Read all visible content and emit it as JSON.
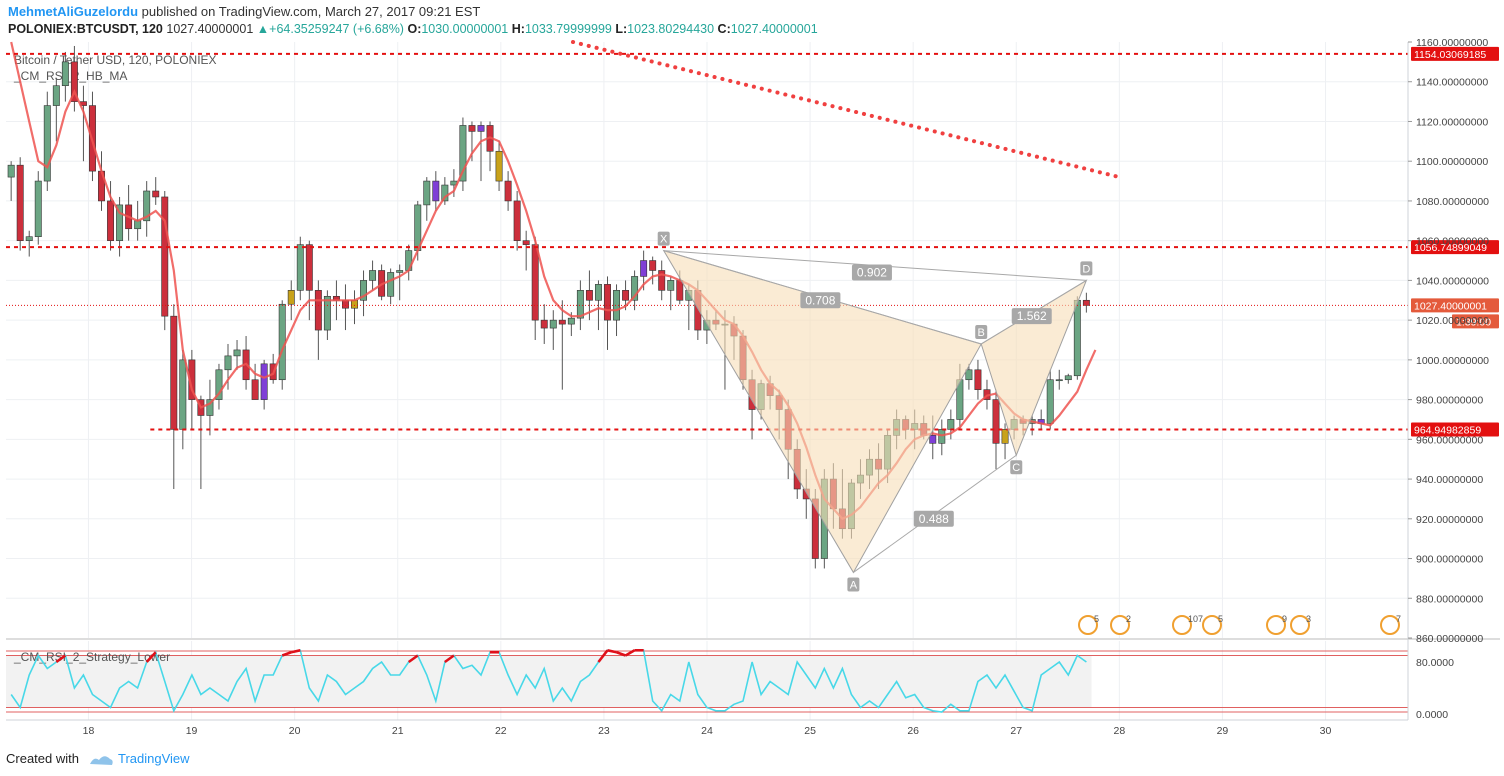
{
  "header": {
    "author": "MehmetAliGuzelordu",
    "published": "published on TradingView.com, March 27, 2017 09:21 EST",
    "symbol": "POLONIEX:BTCUSDT, 120",
    "last": "1027.40000001",
    "change": "+64.35259247 (+6.68%)",
    "o_label": "O:",
    "o": "1030.00000001",
    "h_label": "H:",
    "h": "1033.79999999",
    "l_label": "L:",
    "l": "1023.80294430",
    "c_label": "C:",
    "c": "1027.40000001"
  },
  "chart_data": [
    {
      "type": "candlestick",
      "title": "Bitcoin / Tether USD, 120, POLONIEX",
      "indicator": "_CM_RSI_2_HB_MA",
      "ylim": [
        860,
        1160
      ],
      "y_ticks": [
        860,
        880,
        900,
        920,
        940,
        960,
        980,
        1000,
        1020,
        1040,
        1060,
        1080,
        1100,
        1120,
        1140,
        1160
      ],
      "y_tick_labels": [
        "860.00000000",
        "880.00000000",
        "900.00000000",
        "920.00000000",
        "940.00000000",
        "960.00000000",
        "980.00000000",
        "1000.00000000",
        "1020.00000000",
        "1040.00000000",
        "1060.00000000",
        "1080.00000000",
        "1100.00000000",
        "1120.00000000",
        "1140.00000000",
        "1160.00000000"
      ],
      "xlim": [
        17.2,
        30.8
      ],
      "x_ticks": [
        18,
        19,
        20,
        21,
        22,
        23,
        24,
        25,
        26,
        27,
        28,
        29,
        30
      ],
      "x_tick_labels": [
        "18",
        "19",
        "20",
        "21",
        "22",
        "23",
        "24",
        "25",
        "26",
        "27",
        "28",
        "29",
        "30"
      ],
      "ohlc": [
        [
          1092,
          1100,
          1080,
          1098
        ],
        [
          1098,
          1102,
          1055,
          1060
        ],
        [
          1060,
          1065,
          1052,
          1062
        ],
        [
          1062,
          1095,
          1058,
          1090
        ],
        [
          1090,
          1135,
          1085,
          1128
        ],
        [
          1128,
          1142,
          1110,
          1138
        ],
        [
          1138,
          1155,
          1130,
          1150
        ],
        [
          1150,
          1158,
          1125,
          1130
        ],
        [
          1130,
          1138,
          1100,
          1128
        ],
        [
          1128,
          1135,
          1090,
          1095
        ],
        [
          1095,
          1105,
          1075,
          1080
        ],
        [
          1080,
          1090,
          1055,
          1060
        ],
        [
          1060,
          1082,
          1052,
          1078
        ],
        [
          1078,
          1088,
          1060,
          1066
        ],
        [
          1066,
          1080,
          1060,
          1070
        ],
        [
          1070,
          1090,
          1062,
          1085
        ],
        [
          1085,
          1092,
          1078,
          1082
        ],
        [
          1082,
          1085,
          1015,
          1022
        ],
        [
          1022,
          1028,
          935,
          965
        ],
        [
          965,
          1005,
          955,
          1000
        ],
        [
          1000,
          1005,
          965,
          980
        ],
        [
          980,
          982,
          935,
          972
        ],
        [
          972,
          990,
          962,
          980
        ],
        [
          980,
          998,
          975,
          995
        ],
        [
          995,
          1008,
          985,
          1002
        ],
        [
          1002,
          1010,
          995,
          1005
        ],
        [
          1005,
          1012,
          985,
          990
        ],
        [
          990,
          998,
          980,
          980
        ],
        [
          980,
          1000,
          975,
          998
        ],
        [
          998,
          1003,
          988,
          990
        ],
        [
          990,
          1030,
          985,
          1028
        ],
        [
          1028,
          1040,
          1020,
          1035
        ],
        [
          1035,
          1062,
          1030,
          1058
        ],
        [
          1058,
          1060,
          1020,
          1035
        ],
        [
          1035,
          1040,
          1000,
          1015
        ],
        [
          1015,
          1035,
          1010,
          1032
        ],
        [
          1032,
          1040,
          1020,
          1030
        ],
        [
          1030,
          1038,
          1015,
          1026
        ],
        [
          1026,
          1035,
          1018,
          1030
        ],
        [
          1030,
          1045,
          1022,
          1040
        ],
        [
          1040,
          1050,
          1035,
          1045
        ],
        [
          1045,
          1048,
          1030,
          1032
        ],
        [
          1032,
          1046,
          1028,
          1044
        ],
        [
          1044,
          1048,
          1030,
          1045
        ],
        [
          1045,
          1058,
          1040,
          1055
        ],
        [
          1055,
          1080,
          1050,
          1078
        ],
        [
          1078,
          1092,
          1070,
          1090
        ],
        [
          1090,
          1095,
          1075,
          1080
        ],
        [
          1080,
          1092,
          1078,
          1088
        ],
        [
          1088,
          1096,
          1082,
          1090
        ],
        [
          1090,
          1122,
          1085,
          1118
        ],
        [
          1118,
          1120,
          1100,
          1115
        ],
        [
          1115,
          1120,
          1090,
          1118
        ],
        [
          1118,
          1120,
          1095,
          1105
        ],
        [
          1105,
          1110,
          1085,
          1090
        ],
        [
          1090,
          1095,
          1075,
          1080
        ],
        [
          1080,
          1085,
          1055,
          1060
        ],
        [
          1060,
          1065,
          1045,
          1058
        ],
        [
          1058,
          1062,
          1010,
          1020
        ],
        [
          1020,
          1028,
          1008,
          1016
        ],
        [
          1016,
          1025,
          1005,
          1020
        ],
        [
          1020,
          1030,
          985,
          1018
        ],
        [
          1018,
          1024,
          1012,
          1021
        ],
        [
          1021,
          1040,
          1015,
          1035
        ],
        [
          1035,
          1045,
          1020,
          1030
        ],
        [
          1030,
          1040,
          1015,
          1038
        ],
        [
          1038,
          1042,
          1005,
          1020
        ],
        [
          1020,
          1038,
          1012,
          1035
        ],
        [
          1035,
          1040,
          1025,
          1030
        ],
        [
          1030,
          1045,
          1025,
          1042
        ],
        [
          1042,
          1055,
          1035,
          1050
        ],
        [
          1050,
          1052,
          1038,
          1045
        ],
        [
          1045,
          1050,
          1030,
          1035
        ],
        [
          1035,
          1042,
          1025,
          1040
        ],
        [
          1040,
          1045,
          1028,
          1030
        ],
        [
          1030,
          1038,
          1015,
          1035
        ],
        [
          1035,
          1040,
          1010,
          1015
        ],
        [
          1015,
          1025,
          1008,
          1020
        ],
        [
          1020,
          1025,
          1015,
          1018
        ],
        [
          1018,
          1025,
          985,
          1018
        ],
        [
          1018,
          1022,
          1000,
          1012
        ],
        [
          1012,
          1015,
          985,
          990
        ],
        [
          990,
          995,
          960,
          975
        ],
        [
          975,
          990,
          970,
          988
        ],
        [
          988,
          992,
          975,
          982
        ],
        [
          982,
          985,
          960,
          975
        ],
        [
          975,
          980,
          940,
          955
        ],
        [
          955,
          960,
          930,
          935
        ],
        [
          935,
          945,
          920,
          930
        ],
        [
          930,
          935,
          895,
          900
        ],
        [
          900,
          945,
          895,
          940
        ],
        [
          940,
          948,
          915,
          925
        ],
        [
          925,
          945,
          910,
          915
        ],
        [
          915,
          940,
          910,
          938
        ],
        [
          938,
          950,
          930,
          942
        ],
        [
          942,
          955,
          935,
          950
        ],
        [
          950,
          958,
          935,
          945
        ],
        [
          945,
          965,
          938,
          962
        ],
        [
          962,
          975,
          955,
          970
        ],
        [
          970,
          972,
          960,
          965
        ],
        [
          965,
          975,
          955,
          968
        ],
        [
          968,
          972,
          960,
          962
        ],
        [
          962,
          972,
          950,
          958
        ],
        [
          958,
          970,
          952,
          965
        ],
        [
          965,
          975,
          960,
          970
        ],
        [
          970,
          998,
          965,
          990
        ],
        [
          990,
          998,
          985,
          995
        ],
        [
          995,
          1000,
          980,
          985
        ],
        [
          985,
          990,
          975,
          980
        ],
        [
          980,
          985,
          945,
          958
        ],
        [
          958,
          968,
          950,
          965
        ],
        [
          965,
          972,
          960,
          970
        ],
        [
          970,
          972,
          962,
          968
        ],
        [
          968,
          972,
          962,
          970
        ],
        [
          970,
          975,
          965,
          968
        ],
        [
          968,
          995,
          965,
          990
        ],
        [
          990,
          995,
          985,
          990
        ],
        [
          990,
          993,
          988,
          992
        ],
        [
          992,
          1032,
          990,
          1030
        ],
        [
          1030,
          1033.8,
          1023.8,
          1027.4
        ]
      ],
      "moving_average": [
        1160,
        1140,
        1120,
        1100,
        1097,
        1108,
        1125,
        1135,
        1125,
        1110,
        1095,
        1082,
        1074,
        1072,
        1070,
        1072,
        1075,
        1070,
        1045,
        1005,
        985,
        976,
        978,
        983,
        990,
        996,
        998,
        993,
        991,
        993,
        1005,
        1015,
        1025,
        1030,
        1030,
        1030,
        1030,
        1030,
        1030,
        1032,
        1035,
        1038,
        1040,
        1042,
        1045,
        1055,
        1065,
        1075,
        1082,
        1085,
        1095,
        1104,
        1110,
        1112,
        1110,
        1100,
        1088,
        1075,
        1060,
        1042,
        1030,
        1025,
        1022,
        1022,
        1024,
        1026,
        1025,
        1025,
        1027,
        1032,
        1038,
        1042,
        1043,
        1042,
        1040,
        1038,
        1035,
        1030,
        1025,
        1020,
        1018,
        1012,
        1004,
        995,
        988,
        984,
        977,
        968,
        956,
        942,
        930,
        925,
        920,
        922,
        926,
        932,
        938,
        942,
        948,
        955,
        960,
        962,
        963,
        962,
        963,
        966,
        972,
        978,
        982,
        983,
        978,
        973,
        970,
        969,
        968,
        967,
        972,
        978,
        984,
        995,
        1005
      ],
      "horizontal_levels": [
        {
          "value": 1154.03069185,
          "label": "1154.03069185"
        },
        {
          "value": 1056.74899049,
          "label": "1056.74899049"
        },
        {
          "value": 964.94982859,
          "label": "964.94982859"
        }
      ],
      "last_price_label": "1027.40000001",
      "countdown_label": "1:39:00",
      "trendline": {
        "from": [
          22.7,
          1160
        ],
        "to": [
          28.0,
          1092
        ]
      },
      "harmonic_pattern": {
        "points": [
          {
            "name": "X",
            "x": 23.58,
            "y": 1055
          },
          {
            "name": "A",
            "x": 25.42,
            "y": 893
          },
          {
            "name": "B",
            "x": 26.66,
            "y": 1008
          },
          {
            "name": "C",
            "x": 27.0,
            "y": 952
          },
          {
            "name": "D",
            "x": 27.68,
            "y": 1040
          }
        ],
        "ratios": [
          {
            "label": "0.902",
            "x": 25.6,
            "y": 1044
          },
          {
            "label": "0.708",
            "x": 25.1,
            "y": 1030
          },
          {
            "label": "1.562",
            "x": 27.15,
            "y": 1022
          },
          {
            "label": "0.488",
            "x": 26.2,
            "y": 920
          }
        ]
      },
      "event_flags": [
        "5",
        "2",
        "107",
        "5",
        "9",
        "3",
        "7"
      ]
    },
    {
      "type": "line",
      "title": "_CM_RSI_2_Strategy_Lower",
      "ylim": [
        0,
        100
      ],
      "y_ticks": [
        0,
        80
      ],
      "y_tick_labels": [
        "0.0000",
        "80.0000"
      ],
      "overbought": 90,
      "oversold": 10,
      "values": [
        30,
        10,
        60,
        90,
        70,
        80,
        90,
        40,
        60,
        30,
        20,
        10,
        40,
        50,
        40,
        80,
        95,
        50,
        5,
        30,
        60,
        30,
        40,
        30,
        20,
        50,
        70,
        20,
        60,
        60,
        90,
        95,
        98,
        40,
        20,
        60,
        50,
        30,
        40,
        50,
        70,
        80,
        60,
        60,
        80,
        90,
        60,
        20,
        80,
        90,
        70,
        75,
        60,
        95,
        95,
        60,
        30,
        60,
        40,
        70,
        20,
        40,
        20,
        50,
        60,
        80,
        98,
        95,
        90,
        98,
        98,
        20,
        5,
        30,
        20,
        80,
        30,
        10,
        5,
        5,
        15,
        20,
        80,
        30,
        50,
        40,
        30,
        80,
        60,
        40,
        70,
        40,
        70,
        30,
        10,
        20,
        10,
        30,
        50,
        25,
        30,
        10,
        5,
        3,
        15,
        5,
        5,
        50,
        60,
        40,
        60,
        35,
        10,
        5,
        60,
        70,
        80,
        60,
        90,
        80
      ]
    }
  ],
  "footer": {
    "created_with": "Created with",
    "brand": "TradingView"
  }
}
